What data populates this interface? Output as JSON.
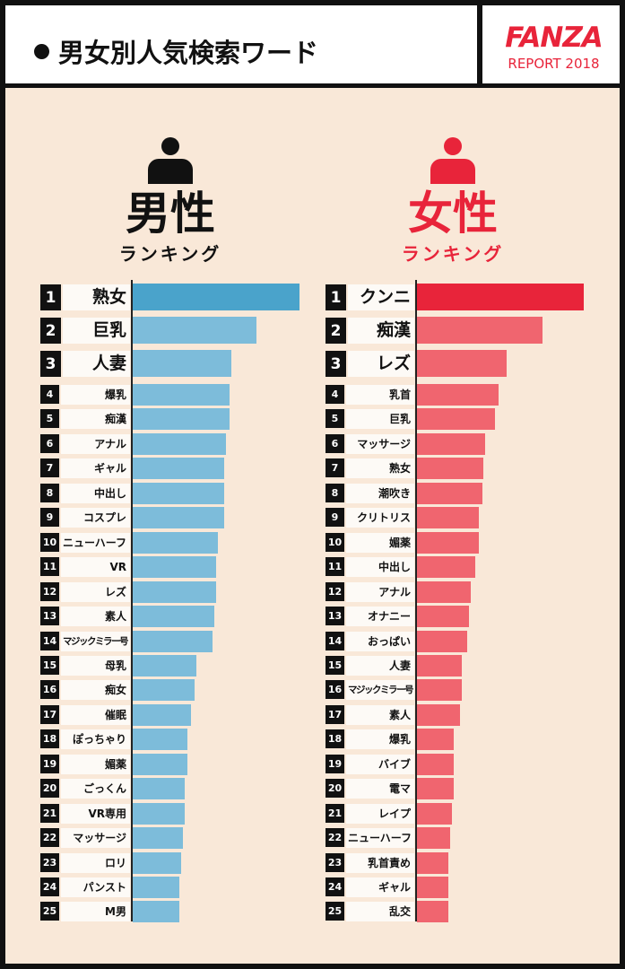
{
  "header": {
    "title": "男女別人気検索ワード",
    "logo": "FANZA",
    "logo_sub": "REPORT 2018"
  },
  "colors": {
    "male_top": "#4aa3cb",
    "male": "#7dbcda",
    "female_top": "#e8243a",
    "female": "#f0656f",
    "background": "#f9e8d8"
  },
  "chart_data": [
    {
      "type": "bar",
      "title": "男性",
      "subtitle": "ランキング",
      "icon": "male-person-icon",
      "orientation": "horizontal",
      "value_unit": "relative length (rank 1 = 100)",
      "categories": [
        "熟女",
        "巨乳",
        "人妻",
        "爆乳",
        "痴漢",
        "アナル",
        "ギャル",
        "中出し",
        "コスプレ",
        "ニューハーフ",
        "VR",
        "レズ",
        "素人",
        "マジックミラー号",
        "母乳",
        "痴女",
        "催眠",
        "ぽっちゃり",
        "媚薬",
        "ごっくん",
        "VR専用",
        "マッサージ",
        "ロリ",
        "パンスト",
        "M男"
      ],
      "values": [
        100,
        74,
        59,
        58,
        58,
        56,
        55,
        55,
        55,
        51,
        50,
        50,
        49,
        48,
        38,
        37,
        35,
        33,
        33,
        31,
        31,
        30,
        29,
        28,
        28
      ]
    },
    {
      "type": "bar",
      "title": "女性",
      "subtitle": "ランキング",
      "icon": "female-person-icon",
      "orientation": "horizontal",
      "value_unit": "relative length (rank 1 = 100)",
      "categories": [
        "クンニ",
        "痴漢",
        "レズ",
        "乳首",
        "巨乳",
        "マッサージ",
        "熟女",
        "潮吹き",
        "クリトリス",
        "媚薬",
        "中出し",
        "アナル",
        "オナニー",
        "おっぱい",
        "人妻",
        "マジックミラー号",
        "素人",
        "爆乳",
        "バイブ",
        "電マ",
        "レイプ",
        "ニューハーフ",
        "乳首責め",
        "ギャル",
        "乱交"
      ],
      "values": [
        100,
        75,
        54,
        49,
        47,
        41,
        40,
        39,
        37,
        37,
        35,
        32,
        31,
        30,
        27,
        27,
        26,
        22,
        22,
        22,
        21,
        20,
        19,
        19,
        19
      ]
    }
  ]
}
